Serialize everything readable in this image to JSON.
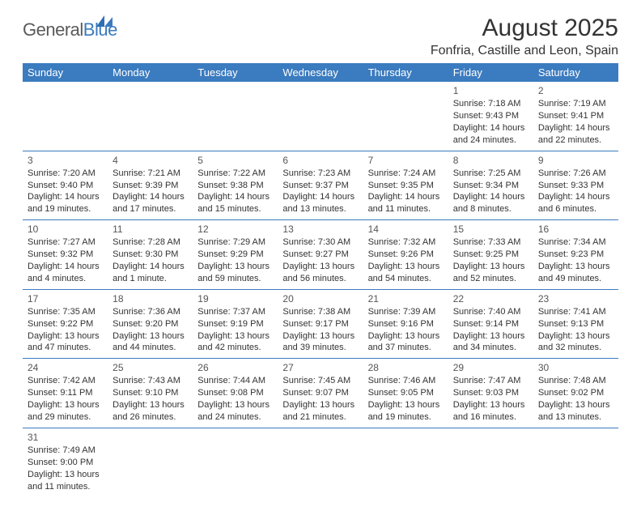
{
  "logo": {
    "part1": "General",
    "part2": "Blue"
  },
  "title": "August 2025",
  "location": "Fonfria, Castille and Leon, Spain",
  "colors": {
    "header_bg": "#3b7bbf",
    "header_text": "#ffffff",
    "cell_border": "#3b7bbf",
    "text": "#333333",
    "logo_gray": "#5a5a5a",
    "logo_blue": "#3b7bbf",
    "page_bg": "#ffffff"
  },
  "weekdays": [
    "Sunday",
    "Monday",
    "Tuesday",
    "Wednesday",
    "Thursday",
    "Friday",
    "Saturday"
  ],
  "weeks": [
    [
      null,
      null,
      null,
      null,
      null,
      {
        "day": "1",
        "sunrise": "Sunrise: 7:18 AM",
        "sunset": "Sunset: 9:43 PM",
        "daylight": "Daylight: 14 hours and 24 minutes."
      },
      {
        "day": "2",
        "sunrise": "Sunrise: 7:19 AM",
        "sunset": "Sunset: 9:41 PM",
        "daylight": "Daylight: 14 hours and 22 minutes."
      }
    ],
    [
      {
        "day": "3",
        "sunrise": "Sunrise: 7:20 AM",
        "sunset": "Sunset: 9:40 PM",
        "daylight": "Daylight: 14 hours and 19 minutes."
      },
      {
        "day": "4",
        "sunrise": "Sunrise: 7:21 AM",
        "sunset": "Sunset: 9:39 PM",
        "daylight": "Daylight: 14 hours and 17 minutes."
      },
      {
        "day": "5",
        "sunrise": "Sunrise: 7:22 AM",
        "sunset": "Sunset: 9:38 PM",
        "daylight": "Daylight: 14 hours and 15 minutes."
      },
      {
        "day": "6",
        "sunrise": "Sunrise: 7:23 AM",
        "sunset": "Sunset: 9:37 PM",
        "daylight": "Daylight: 14 hours and 13 minutes."
      },
      {
        "day": "7",
        "sunrise": "Sunrise: 7:24 AM",
        "sunset": "Sunset: 9:35 PM",
        "daylight": "Daylight: 14 hours and 11 minutes."
      },
      {
        "day": "8",
        "sunrise": "Sunrise: 7:25 AM",
        "sunset": "Sunset: 9:34 PM",
        "daylight": "Daylight: 14 hours and 8 minutes."
      },
      {
        "day": "9",
        "sunrise": "Sunrise: 7:26 AM",
        "sunset": "Sunset: 9:33 PM",
        "daylight": "Daylight: 14 hours and 6 minutes."
      }
    ],
    [
      {
        "day": "10",
        "sunrise": "Sunrise: 7:27 AM",
        "sunset": "Sunset: 9:32 PM",
        "daylight": "Daylight: 14 hours and 4 minutes."
      },
      {
        "day": "11",
        "sunrise": "Sunrise: 7:28 AM",
        "sunset": "Sunset: 9:30 PM",
        "daylight": "Daylight: 14 hours and 1 minute."
      },
      {
        "day": "12",
        "sunrise": "Sunrise: 7:29 AM",
        "sunset": "Sunset: 9:29 PM",
        "daylight": "Daylight: 13 hours and 59 minutes."
      },
      {
        "day": "13",
        "sunrise": "Sunrise: 7:30 AM",
        "sunset": "Sunset: 9:27 PM",
        "daylight": "Daylight: 13 hours and 56 minutes."
      },
      {
        "day": "14",
        "sunrise": "Sunrise: 7:32 AM",
        "sunset": "Sunset: 9:26 PM",
        "daylight": "Daylight: 13 hours and 54 minutes."
      },
      {
        "day": "15",
        "sunrise": "Sunrise: 7:33 AM",
        "sunset": "Sunset: 9:25 PM",
        "daylight": "Daylight: 13 hours and 52 minutes."
      },
      {
        "day": "16",
        "sunrise": "Sunrise: 7:34 AM",
        "sunset": "Sunset: 9:23 PM",
        "daylight": "Daylight: 13 hours and 49 minutes."
      }
    ],
    [
      {
        "day": "17",
        "sunrise": "Sunrise: 7:35 AM",
        "sunset": "Sunset: 9:22 PM",
        "daylight": "Daylight: 13 hours and 47 minutes."
      },
      {
        "day": "18",
        "sunrise": "Sunrise: 7:36 AM",
        "sunset": "Sunset: 9:20 PM",
        "daylight": "Daylight: 13 hours and 44 minutes."
      },
      {
        "day": "19",
        "sunrise": "Sunrise: 7:37 AM",
        "sunset": "Sunset: 9:19 PM",
        "daylight": "Daylight: 13 hours and 42 minutes."
      },
      {
        "day": "20",
        "sunrise": "Sunrise: 7:38 AM",
        "sunset": "Sunset: 9:17 PM",
        "daylight": "Daylight: 13 hours and 39 minutes."
      },
      {
        "day": "21",
        "sunrise": "Sunrise: 7:39 AM",
        "sunset": "Sunset: 9:16 PM",
        "daylight": "Daylight: 13 hours and 37 minutes."
      },
      {
        "day": "22",
        "sunrise": "Sunrise: 7:40 AM",
        "sunset": "Sunset: 9:14 PM",
        "daylight": "Daylight: 13 hours and 34 minutes."
      },
      {
        "day": "23",
        "sunrise": "Sunrise: 7:41 AM",
        "sunset": "Sunset: 9:13 PM",
        "daylight": "Daylight: 13 hours and 32 minutes."
      }
    ],
    [
      {
        "day": "24",
        "sunrise": "Sunrise: 7:42 AM",
        "sunset": "Sunset: 9:11 PM",
        "daylight": "Daylight: 13 hours and 29 minutes."
      },
      {
        "day": "25",
        "sunrise": "Sunrise: 7:43 AM",
        "sunset": "Sunset: 9:10 PM",
        "daylight": "Daylight: 13 hours and 26 minutes."
      },
      {
        "day": "26",
        "sunrise": "Sunrise: 7:44 AM",
        "sunset": "Sunset: 9:08 PM",
        "daylight": "Daylight: 13 hours and 24 minutes."
      },
      {
        "day": "27",
        "sunrise": "Sunrise: 7:45 AM",
        "sunset": "Sunset: 9:07 PM",
        "daylight": "Daylight: 13 hours and 21 minutes."
      },
      {
        "day": "28",
        "sunrise": "Sunrise: 7:46 AM",
        "sunset": "Sunset: 9:05 PM",
        "daylight": "Daylight: 13 hours and 19 minutes."
      },
      {
        "day": "29",
        "sunrise": "Sunrise: 7:47 AM",
        "sunset": "Sunset: 9:03 PM",
        "daylight": "Daylight: 13 hours and 16 minutes."
      },
      {
        "day": "30",
        "sunrise": "Sunrise: 7:48 AM",
        "sunset": "Sunset: 9:02 PM",
        "daylight": "Daylight: 13 hours and 13 minutes."
      }
    ],
    [
      {
        "day": "31",
        "sunrise": "Sunrise: 7:49 AM",
        "sunset": "Sunset: 9:00 PM",
        "daylight": "Daylight: 13 hours and 11 minutes."
      },
      null,
      null,
      null,
      null,
      null,
      null
    ]
  ]
}
